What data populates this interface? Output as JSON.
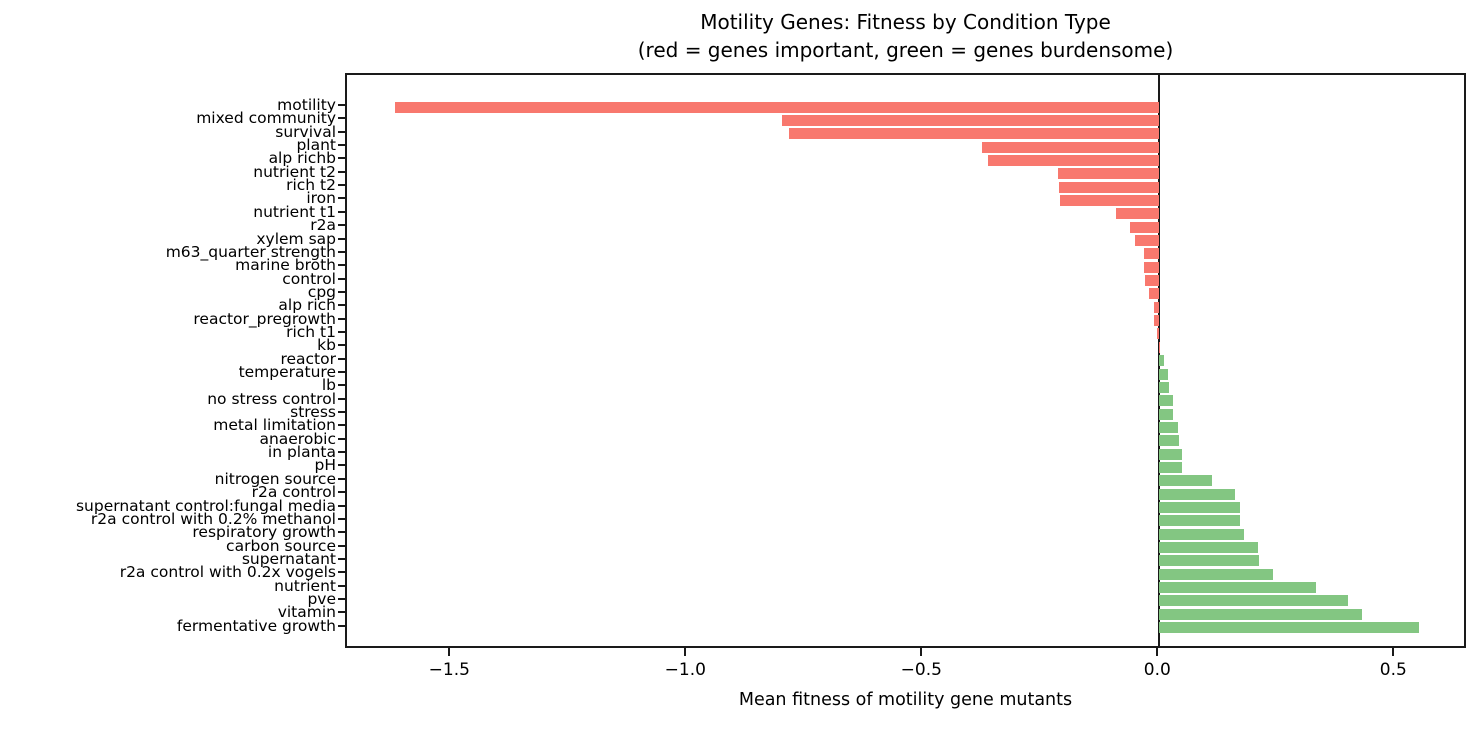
{
  "title": {
    "line1": "Motility Genes: Fitness by Condition Type",
    "line2": "(red = genes important, green = genes burdensome)"
  },
  "xlabel": "Mean fitness of motility gene mutants",
  "chart_data": {
    "type": "bar",
    "orientation": "horizontal",
    "title": "Motility Genes: Fitness by Condition Type (red = genes important, green = genes burdensome)",
    "xlabel": "Mean fitness of motility gene mutants",
    "ylabel": "",
    "grid": false,
    "legend_position": "none",
    "zero_line": true,
    "xlim": [
      -1.721,
      0.654
    ],
    "xticks": [
      -1.5,
      -1.0,
      -0.5,
      0.0,
      0.5
    ],
    "xtick_labels": [
      "−1.5",
      "−1.0",
      "−0.5",
      "0.0",
      "0.5"
    ],
    "categories": [
      "motility",
      "mixed community",
      "survival",
      "plant",
      "alp richb",
      "nutrient t2",
      "rich t2",
      "iron",
      "nutrient t1",
      "r2a",
      "xylem sap",
      "m63_quarter strength",
      "marine broth",
      "control",
      "cpg",
      "alp rich",
      "reactor_pregrowth",
      "rich t1",
      "kb",
      "reactor",
      "temperature",
      "lb",
      "no stress control",
      "stress",
      "metal limitation",
      "anaerobic",
      "in planta",
      "pH",
      "nitrogen source",
      "r2a control",
      "supernatant control:fungal media",
      "r2a control with 0.2% methanol",
      "respiratory growth",
      "carbon source",
      "supernatant",
      "r2a control with 0.2x vogels",
      "nutrient",
      "pve",
      "vitamin",
      "fermentative growth"
    ],
    "values": [
      -1.62,
      -0.8,
      -0.785,
      -0.375,
      -0.362,
      -0.215,
      -0.213,
      -0.211,
      -0.092,
      -0.062,
      -0.051,
      -0.033,
      -0.032,
      -0.031,
      -0.022,
      -0.012,
      -0.011,
      -0.004,
      -0.001,
      0.009,
      0.019,
      0.02,
      0.029,
      0.03,
      0.04,
      0.041,
      0.048,
      0.049,
      0.111,
      0.16,
      0.17,
      0.172,
      0.18,
      0.209,
      0.211,
      0.24,
      0.331,
      0.4,
      0.43,
      0.551
    ],
    "colors": {
      "negative_bar": "#f8786e",
      "positive_bar": "#83c682",
      "axis": "#1a1a1a",
      "background": "#ffffff"
    }
  }
}
